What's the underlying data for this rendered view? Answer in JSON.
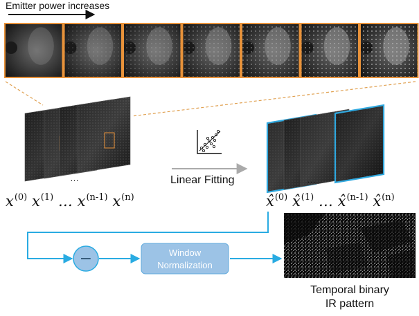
{
  "header": {
    "caption": "Emitter power increases",
    "frame_count": 7
  },
  "process": {
    "linear_fitting_label": "Linear Fitting",
    "subtract_symbol": "−",
    "window_normalization_label": "Window Normalization",
    "window_normalization_lines": [
      "Window",
      "Normalization"
    ],
    "output_label_lines": [
      "Temporal binary",
      "IR pattern"
    ]
  },
  "input_stack": {
    "labels": [
      {
        "base": "x",
        "sup": "(0)"
      },
      {
        "base": "x",
        "sup": "(1)"
      },
      {
        "base": "…",
        "sup": ""
      },
      {
        "base": "x",
        "sup": "(n-1)"
      },
      {
        "base": "x",
        "sup": "(n)"
      }
    ],
    "ellipsis": "…"
  },
  "output_stack": {
    "labels": [
      {
        "base": "x̂",
        "sup": "(0)"
      },
      {
        "base": "x̂",
        "sup": "(1)"
      },
      {
        "base": "…",
        "sup": ""
      },
      {
        "base": "x̂",
        "sup": "(n-1)"
      },
      {
        "base": "x̂",
        "sup": "(n)"
      }
    ],
    "ellipsis": "…"
  },
  "colors": {
    "frame_border": "#e8923a",
    "dashed_connector": "#e0a050",
    "highlight_border": "#2ea8df",
    "flow_arrow": "#29abe2",
    "gray_arrow": "#aaaaaa",
    "node_fill": "#9cc3e6",
    "node_text": "#ffffff"
  }
}
